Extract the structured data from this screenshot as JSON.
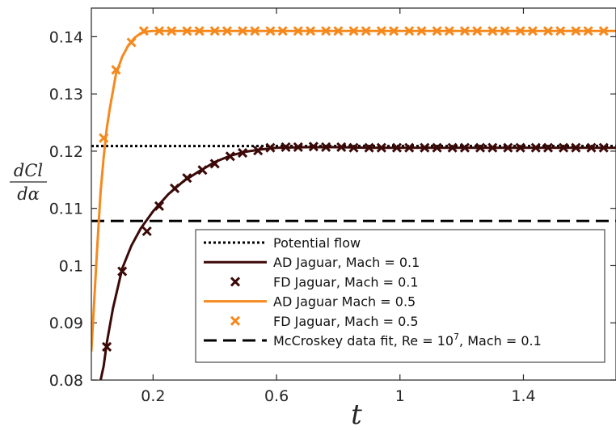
{
  "chart_data": {
    "type": "line",
    "xlabel": "t",
    "ylabel_numerator": "dCl",
    "ylabel_denominator": "dα",
    "xlim": [
      0.0,
      1.7
    ],
    "ylim": [
      0.08,
      0.145
    ],
    "xticks": [
      0.2,
      0.6,
      1,
      1.4
    ],
    "xtick_labels": [
      "0.2",
      "0.6",
      "1",
      "1.4"
    ],
    "yticks": [
      0.08,
      0.09,
      0.1,
      0.11,
      0.12,
      0.13,
      0.14
    ],
    "ytick_labels": [
      "0.08",
      "0.09",
      "0.1",
      "0.11",
      "0.12",
      "0.13",
      "0.14"
    ],
    "legend_position": "lower-right",
    "series": [
      {
        "name": "Potential flow",
        "kind": "line",
        "style": "dotted",
        "color": "#000000",
        "x": [
          0.0,
          1.7
        ],
        "y": [
          0.1209,
          0.1209
        ]
      },
      {
        "name": "AD Jaguar, Mach = 0.1",
        "kind": "line",
        "style": "solid",
        "color": "#3b0a08",
        "x": [
          0.03,
          0.04,
          0.05,
          0.07,
          0.1,
          0.13,
          0.16,
          0.2,
          0.25,
          0.3,
          0.35,
          0.4,
          0.45,
          0.5,
          0.55,
          0.6,
          0.7,
          0.8,
          0.9,
          1.0,
          1.2,
          1.4,
          1.7
        ],
        "y": [
          0.08,
          0.0825,
          0.0865,
          0.0925,
          0.0995,
          0.1035,
          0.1065,
          0.1095,
          0.1125,
          0.1148,
          0.1165,
          0.1181,
          0.1192,
          0.1199,
          0.1203,
          0.1206,
          0.1207,
          0.1207,
          0.1206,
          0.1206,
          0.1206,
          0.1206,
          0.1206
        ]
      },
      {
        "name": "FD Jaguar, Mach = 0.1",
        "kind": "marker",
        "marker": "x",
        "color": "#3b0a08",
        "x": [
          0.05,
          0.1,
          0.18,
          0.22,
          0.27,
          0.31,
          0.36,
          0.4,
          0.45,
          0.49,
          0.54,
          0.58,
          0.63,
          0.67,
          0.72,
          0.76,
          0.81,
          0.85,
          0.9,
          0.94,
          0.99,
          1.03,
          1.08,
          1.12,
          1.17,
          1.21,
          1.26,
          1.3,
          1.35,
          1.39,
          1.44,
          1.48,
          1.53,
          1.57,
          1.62,
          1.66
        ],
        "y": [
          0.0858,
          0.099,
          0.106,
          0.1104,
          0.1135,
          0.1153,
          0.1167,
          0.1178,
          0.1191,
          0.1197,
          0.1201,
          0.1206,
          0.1207,
          0.1207,
          0.1208,
          0.1207,
          0.1207,
          0.1206,
          0.1206,
          0.1206,
          0.1206,
          0.1206,
          0.1206,
          0.1206,
          0.1206,
          0.1206,
          0.1206,
          0.1206,
          0.1206,
          0.1206,
          0.1206,
          0.1206,
          0.1206,
          0.1206,
          0.1206,
          0.1206
        ]
      },
      {
        "name": "AD Jaguar Mach = 0.5",
        "kind": "line",
        "style": "solid",
        "color": "#f5891e",
        "x": [
          0.0,
          0.02,
          0.03,
          0.04,
          0.05,
          0.06,
          0.07,
          0.08,
          0.1,
          0.12,
          0.14,
          0.16,
          0.18,
          0.2,
          0.3,
          0.5,
          1.0,
          1.7
        ],
        "y": [
          0.085,
          0.104,
          0.113,
          0.119,
          0.124,
          0.1275,
          0.1305,
          0.1335,
          0.1365,
          0.1385,
          0.1398,
          0.1406,
          0.1409,
          0.141,
          0.141,
          0.141,
          0.141,
          0.141
        ]
      },
      {
        "name": "FD Jaguar, Mach = 0.5",
        "kind": "marker",
        "marker": "x",
        "color": "#f5891e",
        "x": [
          0.04,
          0.08,
          0.13,
          0.17,
          0.22,
          0.26,
          0.31,
          0.35,
          0.4,
          0.44,
          0.49,
          0.53,
          0.58,
          0.62,
          0.67,
          0.71,
          0.76,
          0.8,
          0.85,
          0.89,
          0.94,
          0.98,
          1.03,
          1.07,
          1.12,
          1.16,
          1.21,
          1.25,
          1.3,
          1.34,
          1.39,
          1.43,
          1.48,
          1.52,
          1.57,
          1.61,
          1.66
        ],
        "y": [
          0.1223,
          0.1342,
          0.139,
          0.141,
          0.141,
          0.141,
          0.141,
          0.141,
          0.141,
          0.141,
          0.141,
          0.141,
          0.141,
          0.141,
          0.141,
          0.141,
          0.141,
          0.141,
          0.141,
          0.141,
          0.141,
          0.141,
          0.141,
          0.141,
          0.141,
          0.141,
          0.141,
          0.141,
          0.141,
          0.141,
          0.141,
          0.141,
          0.141,
          0.141,
          0.141,
          0.141,
          0.141
        ]
      },
      {
        "name": "McCroskey data fit, Re = 10",
        "name_superscript": "7",
        "name_suffix": ", Mach = 0.1",
        "kind": "line",
        "style": "dashed",
        "color": "#000000",
        "x": [
          0.0,
          1.7
        ],
        "y": [
          0.1078,
          0.1078
        ]
      }
    ]
  }
}
